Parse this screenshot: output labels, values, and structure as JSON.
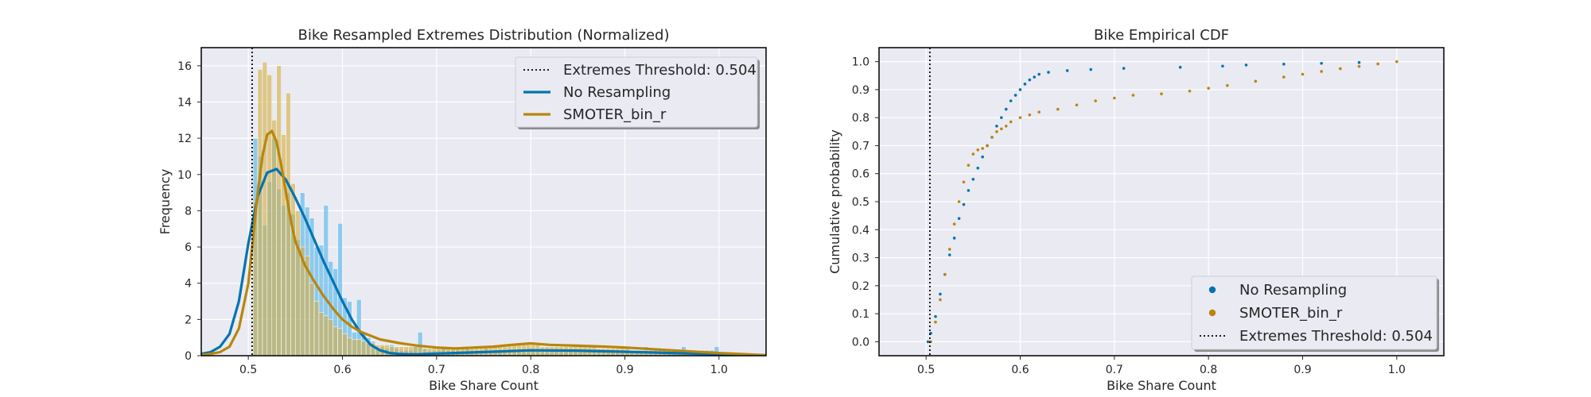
{
  "chart_data": [
    {
      "type": "histogram+kde",
      "title": "Bike Resampled Extremes Distribution (Normalized)",
      "xlabel": "Bike Share Count",
      "ylabel": "Frequency",
      "xlim": [
        0.45,
        1.05
      ],
      "ylim": [
        0,
        17
      ],
      "xticks": [
        0.5,
        0.6,
        0.7,
        0.8,
        0.9,
        1.0
      ],
      "xtick_labels": [
        "0.5",
        "0.6",
        "0.7",
        "0.8",
        "0.9",
        "1.0"
      ],
      "yticks": [
        0,
        2,
        4,
        6,
        8,
        10,
        12,
        14,
        16
      ],
      "ytick_labels": [
        "0",
        "2",
        "4",
        "6",
        "8",
        "10",
        "12",
        "14",
        "16"
      ],
      "grid": true,
      "legend_position": "top-right",
      "threshold": {
        "label": "Extremes Threshold: 0.504",
        "value": 0.504,
        "color": "#000000"
      },
      "bin_width": 0.005,
      "series": [
        {
          "name": "No Resampling",
          "color": "#0173b2",
          "hist_color": "#56b4e9",
          "hist": {
            "starts": [
              0.505,
              0.51,
              0.515,
              0.52,
              0.525,
              0.53,
              0.535,
              0.54,
              0.545,
              0.55,
              0.555,
              0.56,
              0.565,
              0.57,
              0.575,
              0.58,
              0.585,
              0.59,
              0.595,
              0.6,
              0.605,
              0.61,
              0.615,
              0.62,
              0.625,
              0.63,
              0.635,
              0.64,
              0.645,
              0.65,
              0.655,
              0.66,
              0.665,
              0.67,
              0.675,
              0.68,
              0.685,
              0.69,
              0.695,
              0.7,
              0.705,
              0.71,
              0.715,
              0.72,
              0.725,
              0.73,
              0.735,
              0.74,
              0.745,
              0.75,
              0.755,
              0.76,
              0.765,
              0.77,
              0.775,
              0.78,
              0.785,
              0.79,
              0.795,
              0.8,
              0.805,
              0.81,
              0.815,
              0.82,
              0.825,
              0.83,
              0.835,
              0.84,
              0.845,
              0.85,
              0.855,
              0.86,
              0.865,
              0.87,
              0.875,
              0.88,
              0.885,
              0.89,
              0.895,
              0.9,
              0.905,
              0.91,
              0.915,
              0.92,
              0.925,
              0.93,
              0.935,
              0.94,
              0.945,
              0.95,
              0.955,
              0.96,
              0.965,
              0.97,
              0.975,
              0.98,
              0.985,
              0.99,
              0.995
            ],
            "values": [
              12.0,
              11.0,
              7.2,
              9.6,
              12.0,
              9.2,
              8.3,
              9.0,
              7.8,
              6.4,
              9.0,
              8.2,
              7.6,
              6.0,
              6.1,
              8.3,
              5.2,
              4.8,
              7.3,
              3.2,
              3.0,
              1.3,
              3.1,
              1.2,
              1.0,
              0.8,
              0.4,
              0.5,
              0.4,
              0.6,
              0.4,
              0.3,
              0.3,
              0.3,
              0.6,
              1.3,
              0.4,
              0.3,
              0.3,
              0.3,
              0.4,
              0.3,
              0.3,
              0.3,
              0.3,
              0.4,
              0.3,
              0.3,
              0.3,
              0.4,
              0.3,
              0.3,
              0.3,
              0.3,
              0.3,
              0.3,
              0.3,
              0.3,
              0.3,
              0.3,
              0.3,
              0.3,
              0.3,
              0.3,
              0.3,
              0.3,
              0.3,
              0.3,
              0.3,
              0.3,
              0.3,
              0.3,
              0.3,
              0.3,
              0.3,
              0.3,
              0.3,
              0.3,
              0.3,
              0.3,
              0.3,
              0.3,
              0.3,
              0.5,
              0.3,
              0.3,
              0.3,
              0.3,
              0.3,
              0.3,
              0.3,
              0.5,
              0.3,
              0.3,
              0.3,
              0.3,
              0.3,
              0.3,
              0.5
            ]
          },
          "kde": {
            "x": [
              0.45,
              0.46,
              0.47,
              0.48,
              0.49,
              0.5,
              0.51,
              0.52,
              0.53,
              0.54,
              0.55,
              0.56,
              0.57,
              0.58,
              0.59,
              0.6,
              0.61,
              0.62,
              0.63,
              0.64,
              0.65,
              0.66,
              0.67,
              0.68,
              0.69,
              0.7,
              0.72,
              0.75,
              0.8,
              0.85,
              0.9,
              0.95,
              1.0,
              1.05
            ],
            "y": [
              0.1,
              0.2,
              0.5,
              1.2,
              3.0,
              6.2,
              8.8,
              10.1,
              10.3,
              9.7,
              8.7,
              7.6,
              6.4,
              5.2,
              4.1,
              3.0,
              2.0,
              1.2,
              0.6,
              0.3,
              0.15,
              0.1,
              0.08,
              0.08,
              0.1,
              0.12,
              0.15,
              0.2,
              0.3,
              0.28,
              0.22,
              0.15,
              0.08,
              0.02
            ]
          }
        },
        {
          "name": "SMOTER_bin_r",
          "color": "#b8860b",
          "hist_color": "#d4b04a",
          "hist": {
            "starts": [
              0.505,
              0.51,
              0.515,
              0.52,
              0.525,
              0.53,
              0.535,
              0.54,
              0.545,
              0.55,
              0.555,
              0.56,
              0.565,
              0.57,
              0.575,
              0.58,
              0.585,
              0.59,
              0.595,
              0.6,
              0.605,
              0.61,
              0.615,
              0.62,
              0.625,
              0.63,
              0.635,
              0.64,
              0.645,
              0.65,
              0.655,
              0.66,
              0.665,
              0.67,
              0.675,
              0.68,
              0.685,
              0.69,
              0.695,
              0.7,
              0.705,
              0.71,
              0.715,
              0.72,
              0.725,
              0.73,
              0.735,
              0.74,
              0.745,
              0.75,
              0.755,
              0.76,
              0.765,
              0.77,
              0.775,
              0.78,
              0.785,
              0.79,
              0.795,
              0.8,
              0.805,
              0.81,
              0.815,
              0.82,
              0.825,
              0.83,
              0.835,
              0.84,
              0.845,
              0.85,
              0.855,
              0.86,
              0.865,
              0.87,
              0.875,
              0.88,
              0.885,
              0.89,
              0.895,
              0.9,
              0.905,
              0.91,
              0.915,
              0.92,
              0.925,
              0.93,
              0.935,
              0.94,
              0.945,
              0.95,
              0.955,
              0.96,
              0.965,
              0.97,
              0.975,
              0.98,
              0.985,
              0.99,
              0.995
            ],
            "values": [
              8.5,
              15.8,
              16.2,
              15.5,
              13.0,
              16.0,
              12.2,
              14.5,
              9.5,
              8.0,
              6.0,
              5.5,
              4.0,
              3.0,
              2.4,
              2.2,
              2.0,
              1.6,
              1.5,
              1.2,
              1.0,
              0.9,
              0.9,
              0.8,
              0.7,
              0.7,
              0.6,
              0.6,
              0.6,
              0.5,
              0.5,
              0.5,
              0.5,
              0.5,
              0.5,
              0.5,
              0.4,
              0.4,
              0.4,
              0.4,
              0.4,
              0.4,
              0.4,
              0.4,
              0.4,
              0.4,
              0.5,
              0.5,
              0.5,
              0.5,
              0.5,
              0.6,
              0.6,
              0.6,
              0.6,
              0.6,
              0.6,
              0.6,
              0.6,
              0.6,
              0.6,
              0.5,
              0.5,
              0.5,
              0.5,
              0.5,
              0.5,
              0.5,
              0.5,
              0.5,
              0.5,
              0.5,
              0.5,
              0.4,
              0.4,
              0.4,
              0.4,
              0.4,
              0.4,
              0.4,
              0.3,
              0.3,
              0.3,
              0.3,
              0.3,
              0.3,
              0.3,
              0.3,
              0.3,
              0.3,
              0.3,
              0.2,
              0.2,
              0.2,
              0.2,
              0.2,
              0.2,
              0.2,
              0.2
            ]
          },
          "kde": {
            "x": [
              0.45,
              0.46,
              0.47,
              0.48,
              0.49,
              0.5,
              0.505,
              0.51,
              0.515,
              0.52,
              0.525,
              0.53,
              0.535,
              0.54,
              0.545,
              0.55,
              0.56,
              0.57,
              0.58,
              0.59,
              0.6,
              0.61,
              0.62,
              0.64,
              0.66,
              0.68,
              0.7,
              0.72,
              0.74,
              0.76,
              0.78,
              0.8,
              0.82,
              0.85,
              0.88,
              0.9,
              0.95,
              1.0,
              1.05
            ],
            "y": [
              0.05,
              0.1,
              0.2,
              0.5,
              1.5,
              4.0,
              6.5,
              9.0,
              11.0,
              12.2,
              12.4,
              11.8,
              10.5,
              9.0,
              7.5,
              6.3,
              5.0,
              4.1,
              3.3,
              2.6,
              2.0,
              1.6,
              1.3,
              0.9,
              0.7,
              0.55,
              0.45,
              0.4,
              0.45,
              0.5,
              0.6,
              0.68,
              0.6,
              0.55,
              0.5,
              0.45,
              0.3,
              0.15,
              0.03
            ]
          }
        }
      ]
    },
    {
      "type": "scatter",
      "title": "Bike Empirical CDF",
      "xlabel": "Bike Share Count",
      "ylabel": "Cumulative probability",
      "xlim": [
        0.45,
        1.05
      ],
      "ylim": [
        -0.05,
        1.05
      ],
      "xticks": [
        0.5,
        0.6,
        0.7,
        0.8,
        0.9,
        1.0
      ],
      "xtick_labels": [
        "0.5",
        "0.6",
        "0.7",
        "0.8",
        "0.9",
        "1.0"
      ],
      "yticks": [
        0.0,
        0.1,
        0.2,
        0.3,
        0.4,
        0.5,
        0.6,
        0.7,
        0.8,
        0.9,
        1.0
      ],
      "ytick_labels": [
        "0.0",
        "0.1",
        "0.2",
        "0.3",
        "0.4",
        "0.5",
        "0.6",
        "0.7",
        "0.8",
        "0.9",
        "1.0"
      ],
      "grid": true,
      "legend_position": "bottom-right",
      "threshold": {
        "label": "Extremes Threshold: 0.504",
        "value": 0.504,
        "color": "#000000"
      },
      "series": [
        {
          "name": "No Resampling",
          "color": "#0173b2",
          "x": [
            0.502,
            0.505,
            0.51,
            0.515,
            0.52,
            0.525,
            0.53,
            0.535,
            0.54,
            0.545,
            0.55,
            0.555,
            0.56,
            0.565,
            0.57,
            0.575,
            0.58,
            0.585,
            0.59,
            0.595,
            0.6,
            0.605,
            0.61,
            0.615,
            0.62,
            0.63,
            0.65,
            0.675,
            0.71,
            0.77,
            0.815,
            0.84,
            0.88,
            0.92,
            0.96
          ],
          "y": [
            0.0,
            0.03,
            0.09,
            0.17,
            0.24,
            0.31,
            0.37,
            0.44,
            0.49,
            0.54,
            0.58,
            0.62,
            0.66,
            0.7,
            0.73,
            0.77,
            0.8,
            0.83,
            0.86,
            0.88,
            0.9,
            0.92,
            0.935,
            0.945,
            0.955,
            0.962,
            0.968,
            0.972,
            0.976,
            0.98,
            0.984,
            0.988,
            0.991,
            0.994,
            0.997
          ]
        },
        {
          "name": "SMOTER_bin_r",
          "color": "#b8860b",
          "x": [
            0.505,
            0.51,
            0.515,
            0.52,
            0.525,
            0.53,
            0.535,
            0.54,
            0.545,
            0.55,
            0.555,
            0.56,
            0.565,
            0.57,
            0.575,
            0.58,
            0.585,
            0.59,
            0.6,
            0.61,
            0.62,
            0.64,
            0.66,
            0.68,
            0.7,
            0.72,
            0.75,
            0.78,
            0.8,
            0.82,
            0.85,
            0.88,
            0.9,
            0.92,
            0.94,
            0.96,
            0.98,
            1.0
          ],
          "y": [
            0.0,
            0.07,
            0.15,
            0.24,
            0.33,
            0.42,
            0.5,
            0.57,
            0.63,
            0.67,
            0.685,
            0.69,
            0.7,
            0.73,
            0.75,
            0.76,
            0.77,
            0.785,
            0.8,
            0.81,
            0.82,
            0.83,
            0.845,
            0.86,
            0.87,
            0.88,
            0.885,
            0.895,
            0.905,
            0.915,
            0.93,
            0.945,
            0.955,
            0.965,
            0.975,
            0.983,
            0.992,
            1.0
          ]
        }
      ]
    }
  ]
}
